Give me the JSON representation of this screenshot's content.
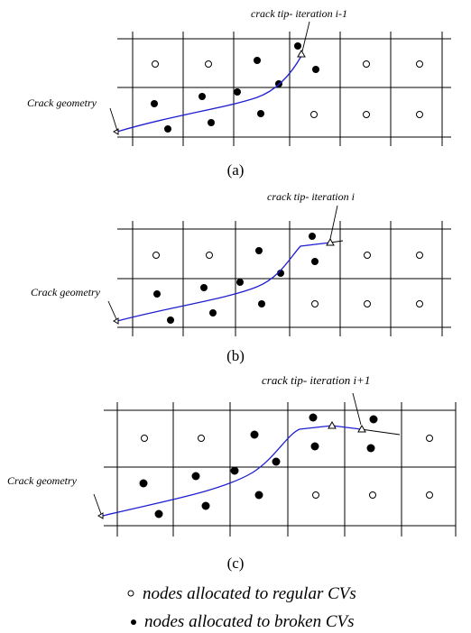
{
  "panels": [
    {
      "id": "a",
      "caption": "(a)",
      "crack_geometry_label": "Crack geometry",
      "tip_label": "crack tip- iteration i-1"
    },
    {
      "id": "b",
      "caption": "(b)",
      "crack_geometry_label": "Crack geometry",
      "tip_label": "crack tip- iteration i"
    },
    {
      "id": "c",
      "caption": "(c)",
      "crack_geometry_label": "Crack geometry",
      "tip_label": "crack tip- iteration i+1"
    }
  ],
  "legend": {
    "regular": "nodes allocated to regular CVs",
    "broken": "nodes allocated to broken CVs"
  },
  "colors": {
    "crack_line": "#1f1fd0",
    "grid": "#000000"
  }
}
